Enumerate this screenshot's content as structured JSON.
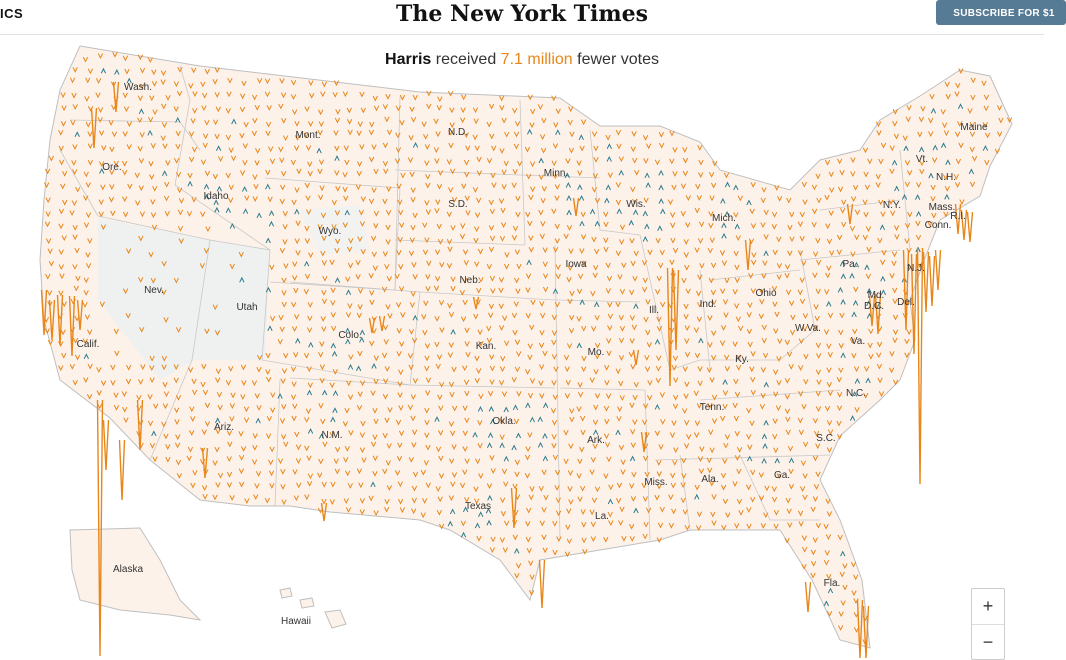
{
  "header": {
    "section_label": "ICS",
    "logo": "The New York Times",
    "subscribe_label": "SUBSCRIBE FOR $1"
  },
  "headline": {
    "candidate": "Harris",
    "pre": "received",
    "amount": "7.1 million",
    "post": "fewer votes"
  },
  "colors": {
    "land": "#fdf2ea",
    "land_gray": "#eef1f0",
    "shift_right": "#e8861a",
    "shift_left": "#2b7a8c",
    "border": "#bfbfbf"
  },
  "states": [
    {
      "name": "Wash."
    },
    {
      "name": "Ore."
    },
    {
      "name": "Calif."
    },
    {
      "name": "Idaho"
    },
    {
      "name": "Nev."
    },
    {
      "name": "Mont."
    },
    {
      "name": "Wyo."
    },
    {
      "name": "Utah"
    },
    {
      "name": "Ariz."
    },
    {
      "name": "Colo."
    },
    {
      "name": "N.M."
    },
    {
      "name": "N.D."
    },
    {
      "name": "S.D."
    },
    {
      "name": "Neb."
    },
    {
      "name": "Kan."
    },
    {
      "name": "Okla."
    },
    {
      "name": "Texas"
    },
    {
      "name": "Minn."
    },
    {
      "name": "Iowa"
    },
    {
      "name": "Mo."
    },
    {
      "name": "Ark."
    },
    {
      "name": "La."
    },
    {
      "name": "Wis."
    },
    {
      "name": "Ill."
    },
    {
      "name": "Mich."
    },
    {
      "name": "Ind."
    },
    {
      "name": "Ohio"
    },
    {
      "name": "Ky."
    },
    {
      "name": "Tenn."
    },
    {
      "name": "Miss."
    },
    {
      "name": "Ala."
    },
    {
      "name": "Ga."
    },
    {
      "name": "Fla."
    },
    {
      "name": "S.C."
    },
    {
      "name": "N.C."
    },
    {
      "name": "Va."
    },
    {
      "name": "W.Va."
    },
    {
      "name": "Pa."
    },
    {
      "name": "N.Y."
    },
    {
      "name": "Md."
    },
    {
      "name": "Del."
    },
    {
      "name": "D.C."
    },
    {
      "name": "N.J."
    },
    {
      "name": "Conn."
    },
    {
      "name": "R.I."
    },
    {
      "name": "Mass."
    },
    {
      "name": "Vt."
    },
    {
      "name": "N.H."
    },
    {
      "name": "Maine"
    },
    {
      "name": "Alaska"
    },
    {
      "name": "Hawaii"
    }
  ],
  "zoom": {
    "in_label": "+",
    "out_label": "−"
  }
}
